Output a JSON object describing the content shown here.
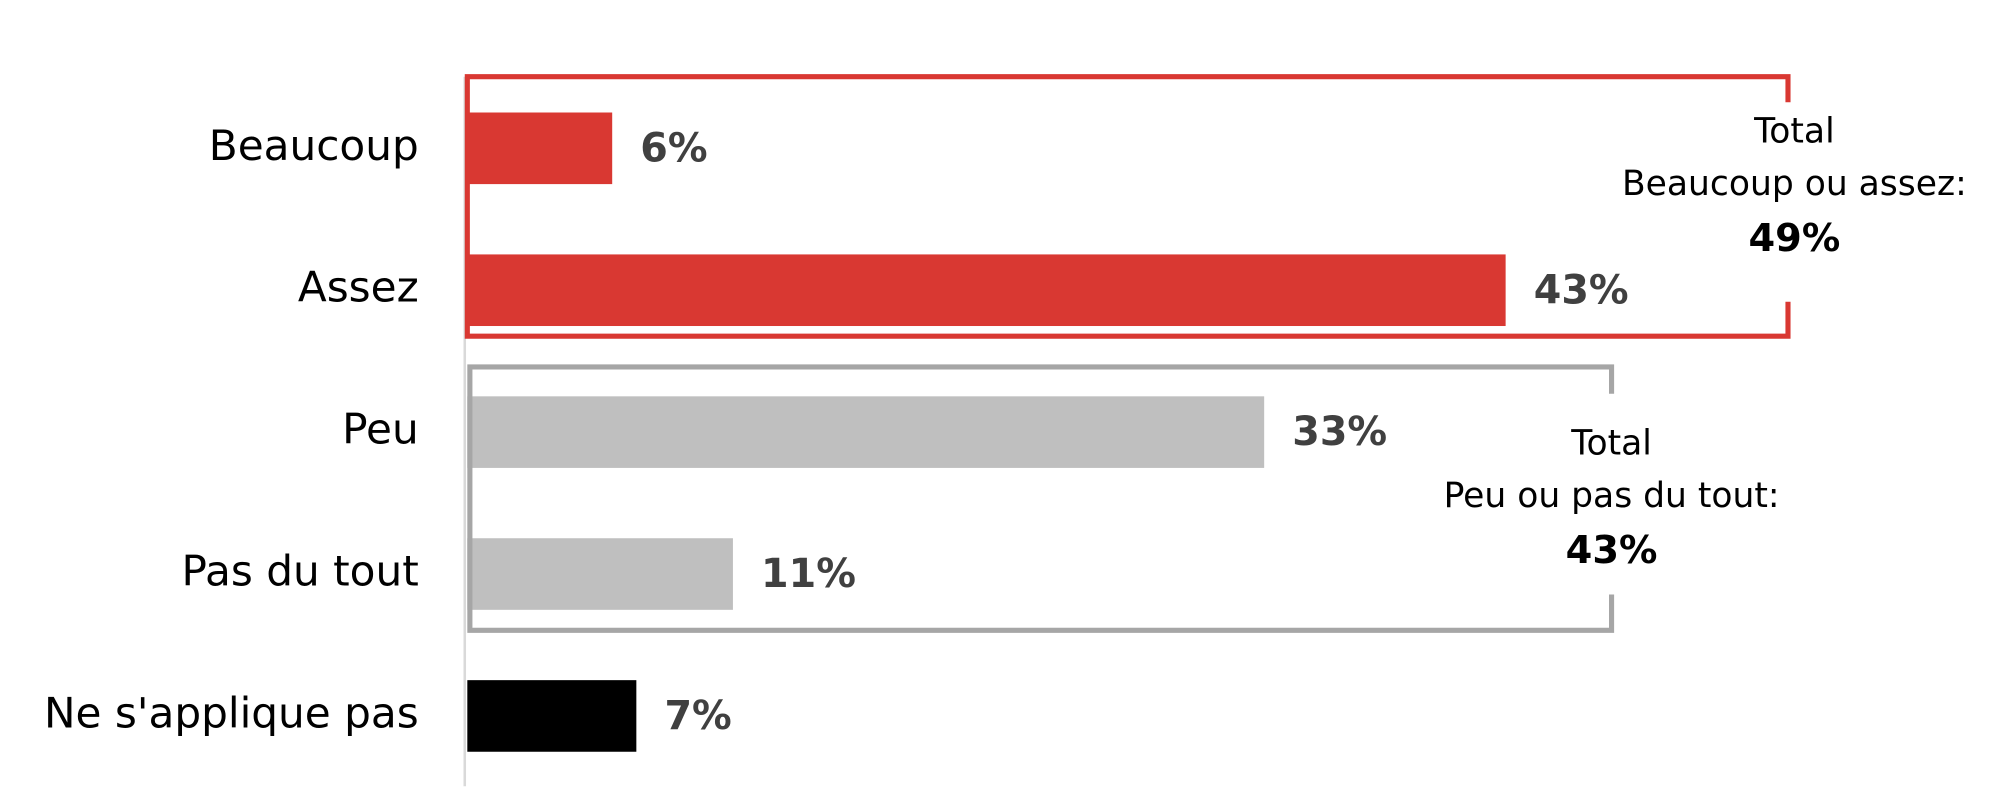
{
  "chart_data": {
    "type": "bar",
    "orientation": "horizontal",
    "categories": [
      "Beaucoup",
      "Assez",
      "Peu",
      "Pas du tout",
      "Ne s'applique pas"
    ],
    "values": [
      6,
      43,
      33,
      11,
      7
    ],
    "value_labels": [
      "6%",
      "43%",
      "33%",
      "11%",
      "7%"
    ],
    "colors": [
      "#d93832",
      "#d93832",
      "#bfbfbf",
      "#bfbfbf",
      "#000000"
    ],
    "xlim": [
      0,
      62
    ],
    "groups": [
      {
        "lines": [
          "Total",
          "Beaucoup ou assez:"
        ],
        "total": "49%",
        "color": "#d93832"
      },
      {
        "lines": [
          "Total",
          "Peu ou pas du tout:"
        ],
        "total": "43%",
        "color": "#a6a6a6"
      }
    ]
  }
}
